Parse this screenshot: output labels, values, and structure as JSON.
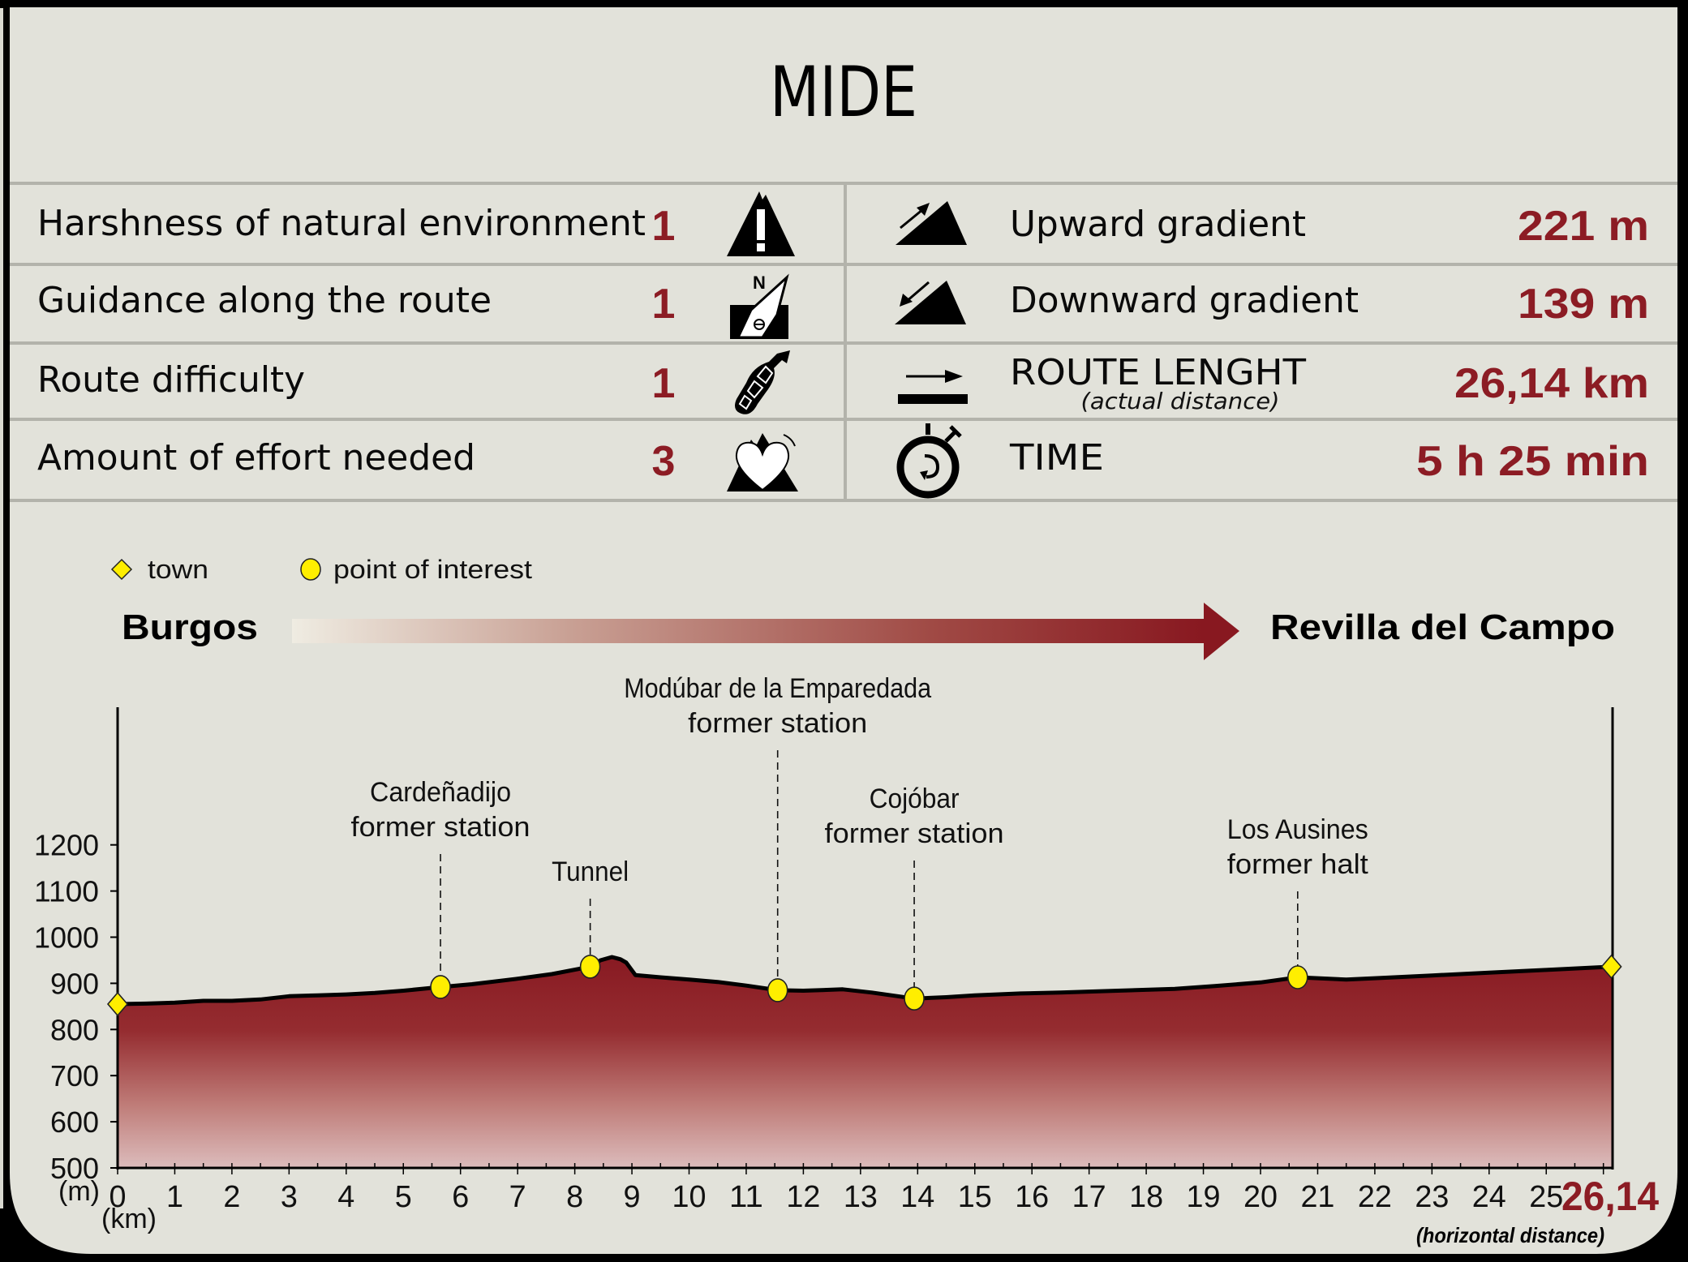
{
  "title": "MIDE",
  "mide": {
    "left": [
      {
        "label": "Harshness of natural environment",
        "value": "1",
        "icon": "harshness-mountain-exclamation-icon"
      },
      {
        "label": "Guidance along the route",
        "value": "1",
        "icon": "guidance-compass-icon"
      },
      {
        "label": "Route difficulty",
        "value": "1",
        "icon": "boot-sole-icon"
      },
      {
        "label": "Amount of effort needed",
        "value": "3",
        "icon": "heart-mountain-icon"
      }
    ],
    "right": [
      {
        "label": "Upward gradient",
        "sublabel": "",
        "value": "221 m",
        "icon": "uphill-arrow-icon"
      },
      {
        "label": "Downward gradient",
        "sublabel": "",
        "value": "139 m",
        "icon": "downhill-arrow-icon"
      },
      {
        "label": "ROUTE LENGHT",
        "sublabel": "(actual distance)",
        "value": "26,14 km",
        "icon": "distance-arrow-icon"
      },
      {
        "label": "TIME",
        "sublabel": "",
        "value": "5 h 25 min",
        "icon": "stopwatch-icon"
      }
    ]
  },
  "legend": {
    "town": "town",
    "poi": "point of interest"
  },
  "route": {
    "start": "Burgos",
    "end": "Revilla del Campo"
  },
  "axis": {
    "y_unit": "(m)",
    "x_unit": "(km)",
    "end_label": "26,14",
    "end_note": "(horizontal distance)"
  },
  "colors": {
    "background": "#e2e2da",
    "accent": "#8c1c24",
    "marker": "#ffee00",
    "separator": "#b3b3ab"
  },
  "chart_data": {
    "type": "area",
    "title": "Elevation profile: Burgos → Revilla del Campo",
    "xlabel": "(km)",
    "ylabel": "(m)",
    "xlim": [
      0,
      26.14
    ],
    "ylim": [
      500,
      1300
    ],
    "x_ticks": [
      0,
      1,
      2,
      3,
      4,
      5,
      6,
      7,
      8,
      9,
      10,
      11,
      12,
      13,
      14,
      15,
      16,
      17,
      18,
      19,
      20,
      21,
      22,
      23,
      24,
      25
    ],
    "y_ticks": [
      500,
      600,
      700,
      800,
      900,
      1000,
      1100,
      1200
    ],
    "grid": false,
    "profile": {
      "x": [
        0,
        0.5,
        1.0,
        1.5,
        2.0,
        2.5,
        3.0,
        3.5,
        4.0,
        4.5,
        5.0,
        5.65,
        6.2,
        7.0,
        7.6,
        8.27,
        8.45,
        8.65,
        8.8,
        8.9,
        9.06,
        9.5,
        10.0,
        10.5,
        11.0,
        11.55,
        12.0,
        12.69,
        13.2,
        13.94,
        14.5,
        15.0,
        15.8,
        16.5,
        17.5,
        18.5,
        19.2,
        20.0,
        20.65,
        21.0,
        21.5,
        22.0,
        23.0,
        24.0,
        25.0,
        26.14
      ],
      "y": [
        855,
        856,
        858,
        862,
        862,
        865,
        872,
        874,
        876,
        879,
        884,
        892,
        898,
        910,
        920,
        936,
        950,
        957,
        952,
        945,
        918,
        913,
        908,
        903,
        895,
        885,
        884,
        887,
        880,
        867,
        870,
        874,
        878,
        880,
        884,
        888,
        894,
        902,
        913,
        911,
        908,
        911,
        917,
        923,
        929,
        936
      ]
    },
    "towns": [
      {
        "name": "Burgos",
        "km": 0,
        "elev": 855
      },
      {
        "name": "Revilla del Campo",
        "km": 26.14,
        "elev": 936
      }
    ],
    "points_of_interest": [
      {
        "name": "Cardeñadijo",
        "sub": "former station",
        "km": 5.65,
        "elev": 892
      },
      {
        "name": "Tunnel",
        "sub": "",
        "km": 8.27,
        "elev": 936
      },
      {
        "name": "Modúbar de la Emparedada",
        "sub": "former station",
        "km": 11.55,
        "elev": 885
      },
      {
        "name": "Cojóbar",
        "sub": "former station",
        "km": 13.94,
        "elev": 867
      },
      {
        "name": "Los Ausines",
        "sub": "former halt",
        "km": 20.65,
        "elev": 913
      }
    ],
    "legend": [
      "town",
      "point of interest"
    ],
    "legend_position": "top-left"
  }
}
